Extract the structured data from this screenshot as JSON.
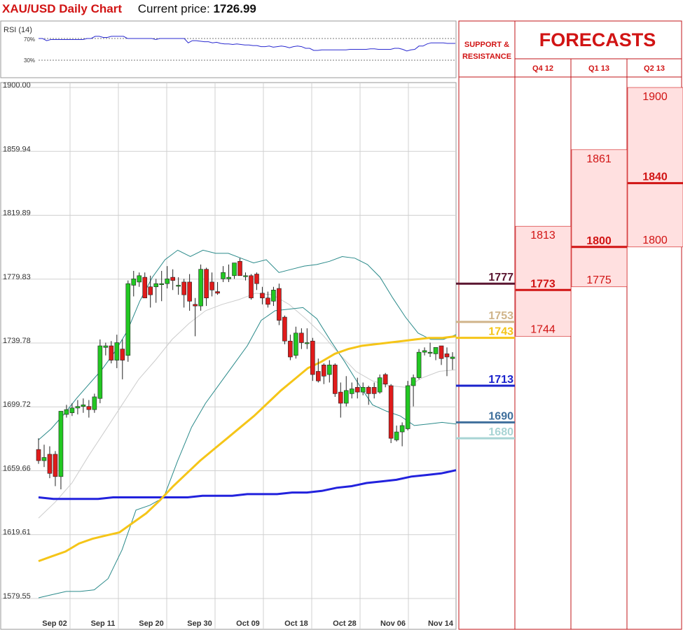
{
  "header": {
    "title": "XAU/USD Daily Chart",
    "price_label": "Current price:",
    "price_value": "1726.99"
  },
  "rsi": {
    "label": "RSI (14)",
    "level_high": "70%",
    "level_low": "30%",
    "values": [
      70,
      70,
      66,
      68,
      68,
      68,
      68,
      68,
      68,
      68,
      68,
      68,
      70,
      70,
      74,
      74,
      72,
      72,
      74,
      74,
      74,
      74,
      70,
      70,
      70,
      70,
      70,
      70,
      70,
      68,
      70,
      70,
      70,
      70,
      70,
      70,
      70,
      62,
      66,
      66,
      65,
      64,
      64,
      62,
      63,
      61,
      60,
      60,
      59,
      60,
      59,
      58,
      58,
      57,
      57,
      55,
      55,
      56,
      54,
      55,
      56,
      55,
      53,
      55,
      56,
      55,
      52,
      52,
      48,
      48,
      49,
      49,
      49,
      49,
      49,
      49,
      49,
      50,
      50,
      50,
      50,
      50,
      51,
      51,
      50,
      50,
      50,
      50,
      52,
      52,
      50,
      47,
      49,
      50,
      56,
      56,
      60,
      62,
      62,
      62,
      62,
      61,
      61,
      61
    ]
  },
  "chart_data": {
    "type": "candlestick",
    "title": "XAU/USD Daily Chart",
    "ylim": [
      1579.55,
      1900.0
    ],
    "y_ticks": [
      "1900.00",
      "1859.94",
      "1819.89",
      "1779.83",
      "1739.78",
      "1699.72",
      "1659.66",
      "1619.61",
      "1579.55"
    ],
    "x_ticks": [
      "Sep 02",
      "Sep 11",
      "Sep 20",
      "Sep 30",
      "Oct 09",
      "Oct 18",
      "Oct 28",
      "Nov 06",
      "Nov 14"
    ],
    "candles": [
      {
        "o": 1673,
        "h": 1680,
        "l": 1664,
        "c": 1666
      },
      {
        "o": 1666,
        "h": 1676,
        "l": 1662,
        "c": 1668
      },
      {
        "o": 1670,
        "h": 1675,
        "l": 1655,
        "c": 1658
      },
      {
        "o": 1670,
        "h": 1672,
        "l": 1650,
        "c": 1656
      },
      {
        "o": 1656,
        "h": 1697,
        "l": 1648,
        "c": 1697
      },
      {
        "o": 1695,
        "h": 1701,
        "l": 1693,
        "c": 1698
      },
      {
        "o": 1696,
        "h": 1702,
        "l": 1694,
        "c": 1699
      },
      {
        "o": 1699,
        "h": 1704,
        "l": 1695,
        "c": 1700
      },
      {
        "o": 1700,
        "h": 1705,
        "l": 1696,
        "c": 1701
      },
      {
        "o": 1700,
        "h": 1704,
        "l": 1693,
        "c": 1698
      },
      {
        "o": 1698,
        "h": 1708,
        "l": 1696,
        "c": 1706
      },
      {
        "o": 1705,
        "h": 1742,
        "l": 1702,
        "c": 1738
      },
      {
        "o": 1737,
        "h": 1740,
        "l": 1732,
        "c": 1738
      },
      {
        "o": 1738,
        "h": 1741,
        "l": 1727,
        "c": 1729
      },
      {
        "o": 1729,
        "h": 1745,
        "l": 1724,
        "c": 1740
      },
      {
        "o": 1736,
        "h": 1742,
        "l": 1717,
        "c": 1729
      },
      {
        "o": 1732,
        "h": 1779,
        "l": 1728,
        "c": 1777
      },
      {
        "o": 1776,
        "h": 1785,
        "l": 1769,
        "c": 1780
      },
      {
        "o": 1778,
        "h": 1784,
        "l": 1775,
        "c": 1782
      },
      {
        "o": 1781,
        "h": 1784,
        "l": 1769,
        "c": 1768
      },
      {
        "o": 1775,
        "h": 1782,
        "l": 1762,
        "c": 1770
      },
      {
        "o": 1775,
        "h": 1780,
        "l": 1765,
        "c": 1777
      },
      {
        "o": 1777,
        "h": 1785,
        "l": 1766,
        "c": 1777
      },
      {
        "o": 1777,
        "h": 1788,
        "l": 1774,
        "c": 1780
      },
      {
        "o": 1781,
        "h": 1786,
        "l": 1773,
        "c": 1779
      },
      {
        "o": 1776,
        "h": 1781,
        "l": 1770,
        "c": 1776
      },
      {
        "o": 1778,
        "h": 1780,
        "l": 1762,
        "c": 1770
      },
      {
        "o": 1778,
        "h": 1783,
        "l": 1760,
        "c": 1766
      },
      {
        "o": 1764,
        "h": 1768,
        "l": 1744,
        "c": 1763
      },
      {
        "o": 1763,
        "h": 1789,
        "l": 1760,
        "c": 1786
      },
      {
        "o": 1786,
        "h": 1787,
        "l": 1763,
        "c": 1768
      },
      {
        "o": 1778,
        "h": 1784,
        "l": 1769,
        "c": 1773
      },
      {
        "o": 1772,
        "h": 1778,
        "l": 1770,
        "c": 1771
      },
      {
        "o": 1780,
        "h": 1788,
        "l": 1778,
        "c": 1784
      },
      {
        "o": 1780,
        "h": 1789,
        "l": 1778,
        "c": 1781
      },
      {
        "o": 1782,
        "h": 1790,
        "l": 1780,
        "c": 1790
      },
      {
        "o": 1791,
        "h": 1793,
        "l": 1783,
        "c": 1782
      },
      {
        "o": 1782,
        "h": 1784,
        "l": 1779,
        "c": 1782
      },
      {
        "o": 1782,
        "h": 1783,
        "l": 1767,
        "c": 1768
      },
      {
        "o": 1783,
        "h": 1784,
        "l": 1773,
        "c": 1777
      },
      {
        "o": 1771,
        "h": 1775,
        "l": 1764,
        "c": 1768
      },
      {
        "o": 1768,
        "h": 1772,
        "l": 1762,
        "c": 1764
      },
      {
        "o": 1766,
        "h": 1775,
        "l": 1763,
        "c": 1773
      },
      {
        "o": 1774,
        "h": 1777,
        "l": 1751,
        "c": 1754
      },
      {
        "o": 1756,
        "h": 1757,
        "l": 1739,
        "c": 1741
      },
      {
        "o": 1741,
        "h": 1745,
        "l": 1729,
        "c": 1731
      },
      {
        "o": 1732,
        "h": 1750,
        "l": 1730,
        "c": 1746
      },
      {
        "o": 1746,
        "h": 1749,
        "l": 1736,
        "c": 1740
      },
      {
        "o": 1740,
        "h": 1749,
        "l": 1736,
        "c": 1740
      },
      {
        "o": 1741,
        "h": 1743,
        "l": 1716,
        "c": 1720
      },
      {
        "o": 1722,
        "h": 1730,
        "l": 1715,
        "c": 1716
      },
      {
        "o": 1726,
        "h": 1727,
        "l": 1714,
        "c": 1719
      },
      {
        "o": 1720,
        "h": 1729,
        "l": 1715,
        "c": 1726
      },
      {
        "o": 1726,
        "h": 1727,
        "l": 1706,
        "c": 1708
      },
      {
        "o": 1709,
        "h": 1715,
        "l": 1693,
        "c": 1702
      },
      {
        "o": 1702,
        "h": 1719,
        "l": 1700,
        "c": 1710
      },
      {
        "o": 1708,
        "h": 1715,
        "l": 1705,
        "c": 1711
      },
      {
        "o": 1712,
        "h": 1718,
        "l": 1705,
        "c": 1709
      },
      {
        "o": 1709,
        "h": 1715,
        "l": 1707,
        "c": 1712
      },
      {
        "o": 1712,
        "h": 1713,
        "l": 1701,
        "c": 1708
      },
      {
        "o": 1712,
        "h": 1715,
        "l": 1705,
        "c": 1708
      },
      {
        "o": 1709,
        "h": 1720,
        "l": 1708,
        "c": 1718
      },
      {
        "o": 1720,
        "h": 1721,
        "l": 1712,
        "c": 1714
      },
      {
        "o": 1713,
        "h": 1714,
        "l": 1677,
        "c": 1680
      },
      {
        "o": 1679,
        "h": 1688,
        "l": 1678,
        "c": 1684
      },
      {
        "o": 1684,
        "h": 1690,
        "l": 1675,
        "c": 1688
      },
      {
        "o": 1686,
        "h": 1716,
        "l": 1685,
        "c": 1713
      },
      {
        "o": 1713,
        "h": 1720,
        "l": 1700,
        "c": 1718
      },
      {
        "o": 1718,
        "h": 1736,
        "l": 1717,
        "c": 1734
      },
      {
        "o": 1734,
        "h": 1737,
        "l": 1732,
        "c": 1735
      },
      {
        "o": 1734,
        "h": 1740,
        "l": 1731,
        "c": 1734
      },
      {
        "o": 1733,
        "h": 1737,
        "l": 1729,
        "c": 1737
      },
      {
        "o": 1738,
        "h": 1738,
        "l": 1726,
        "c": 1730
      },
      {
        "o": 1733,
        "h": 1737,
        "l": 1719,
        "c": 1731
      },
      {
        "o": 1730,
        "h": 1734,
        "l": 1723,
        "c": 1731
      }
    ],
    "series": [
      {
        "name": "",
        "role": "ma-slow",
        "color": "#2222dd",
        "values": [
          1643,
          1642,
          1642,
          1642,
          1642,
          1643,
          1643,
          1643,
          1643,
          1643,
          1643,
          1644,
          1644,
          1644,
          1645,
          1645,
          1645,
          1646,
          1646,
          1647,
          1649,
          1650,
          1652,
          1653,
          1654,
          1656,
          1657,
          1658,
          1660
        ]
      },
      {
        "name": "",
        "role": "ma-fast",
        "color": "#f5c518",
        "values": [
          1603,
          1606,
          1609,
          1614,
          1617,
          1619,
          1621,
          1627,
          1633,
          1641,
          1650,
          1658,
          1666,
          1673,
          1680,
          1687,
          1694,
          1702,
          1710,
          1717,
          1724,
          1728,
          1733,
          1736,
          1738,
          1739,
          1740,
          1741,
          1742,
          1743,
          1743,
          1744
        ]
      },
      {
        "name": "",
        "role": "bollinger-upper",
        "color": "#2a8a8a",
        "values": [
          1679,
          1686,
          1695,
          1705,
          1714,
          1723,
          1734,
          1747,
          1766,
          1781,
          1792,
          1798,
          1794,
          1798,
          1796,
          1796,
          1793,
          1790,
          1792,
          1784,
          1786,
          1788,
          1789,
          1791,
          1794,
          1793,
          1789,
          1781,
          1768,
          1756,
          1746,
          1742,
          1742,
          1745
        ]
      },
      {
        "name": "",
        "role": "bollinger-lower",
        "color": "#2a8a8a",
        "values": [
          1580,
          1582,
          1584,
          1584,
          1585,
          1592,
          1610,
          1635,
          1638,
          1643,
          1666,
          1687,
          1702,
          1714,
          1726,
          1738,
          1754,
          1760,
          1761,
          1762,
          1755,
          1741,
          1728,
          1714,
          1701,
          1697,
          1694,
          1688,
          1689,
          1690,
          1689
        ]
      },
      {
        "name": "",
        "role": "bollinger-mid",
        "color": "#cccccc",
        "values": [
          1630,
          1640,
          1652,
          1669,
          1685,
          1701,
          1717,
          1729,
          1742,
          1752,
          1760,
          1764,
          1767,
          1771,
          1770,
          1764,
          1755,
          1745,
          1733,
          1722,
          1716,
          1713,
          1712,
          1718,
          1722,
          1723
        ]
      }
    ]
  },
  "support_resistance": {
    "header_line1": "SUPPORT &",
    "header_line2": "RESISTANCE",
    "levels": [
      {
        "value": "1777",
        "color": "#5a1530"
      },
      {
        "value": "1753",
        "color": "#d0b48a"
      },
      {
        "value": "1743",
        "color": "#f5c518"
      },
      {
        "value": "1713",
        "color": "#1a22cc"
      },
      {
        "value": "1690",
        "color": "#3f6f9c"
      },
      {
        "value": "1680",
        "color": "#a8d4d4"
      }
    ]
  },
  "forecasts": {
    "title": "FORECASTS",
    "columns": [
      {
        "label": "Q4 12",
        "min": 1744,
        "max": 1813,
        "top": "1813",
        "mid": "1773",
        "low": "1744"
      },
      {
        "label": "Q1 13",
        "min": 1775,
        "max": 1861,
        "top": "1861",
        "mid": "1800",
        "low": "1775"
      },
      {
        "label": "Q2 13",
        "min": 1800,
        "max": 1900,
        "top": "1900",
        "mid": "1840",
        "low": "1800"
      }
    ]
  }
}
